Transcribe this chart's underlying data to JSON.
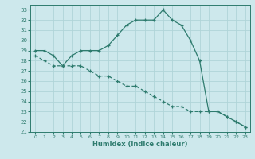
{
  "xlabel": "Humidex (Indice chaleur)",
  "bg_color": "#cde8ec",
  "grid_color": "#b0d4d8",
  "line_color": "#2e7b6e",
  "xlim": [
    -0.5,
    23.5
  ],
  "ylim": [
    21,
    33.5
  ],
  "xticks": [
    0,
    1,
    2,
    3,
    4,
    5,
    6,
    7,
    8,
    9,
    10,
    11,
    12,
    13,
    14,
    15,
    16,
    17,
    18,
    19,
    20,
    21,
    22,
    23
  ],
  "yticks": [
    21,
    22,
    23,
    24,
    25,
    26,
    27,
    28,
    29,
    30,
    31,
    32,
    33
  ],
  "line1_x": [
    0,
    1,
    2,
    3,
    4,
    5,
    6,
    7,
    8,
    9,
    10,
    11,
    12,
    13,
    14,
    15,
    16,
    17,
    18,
    19,
    20,
    21,
    22,
    23
  ],
  "line1_y": [
    29,
    29,
    28.5,
    27.5,
    28.5,
    29,
    29,
    29,
    29.5,
    30.5,
    31.5,
    32,
    32,
    32,
    33,
    32,
    31.5,
    30,
    28,
    23,
    23,
    22.5,
    22,
    21.5
  ],
  "line2_x": [
    0,
    1,
    2,
    3,
    4,
    5,
    6,
    7,
    8,
    9,
    10,
    11,
    12,
    13,
    14,
    15,
    16,
    17,
    18,
    19,
    20,
    21,
    22,
    23
  ],
  "line2_y": [
    28.5,
    28,
    27.5,
    27.5,
    27.5,
    27.5,
    27,
    26.5,
    26.5,
    26,
    25.5,
    25.5,
    25,
    24.5,
    24,
    23.5,
    23.5,
    23,
    23,
    23,
    23,
    22.5,
    22,
    21.5
  ]
}
